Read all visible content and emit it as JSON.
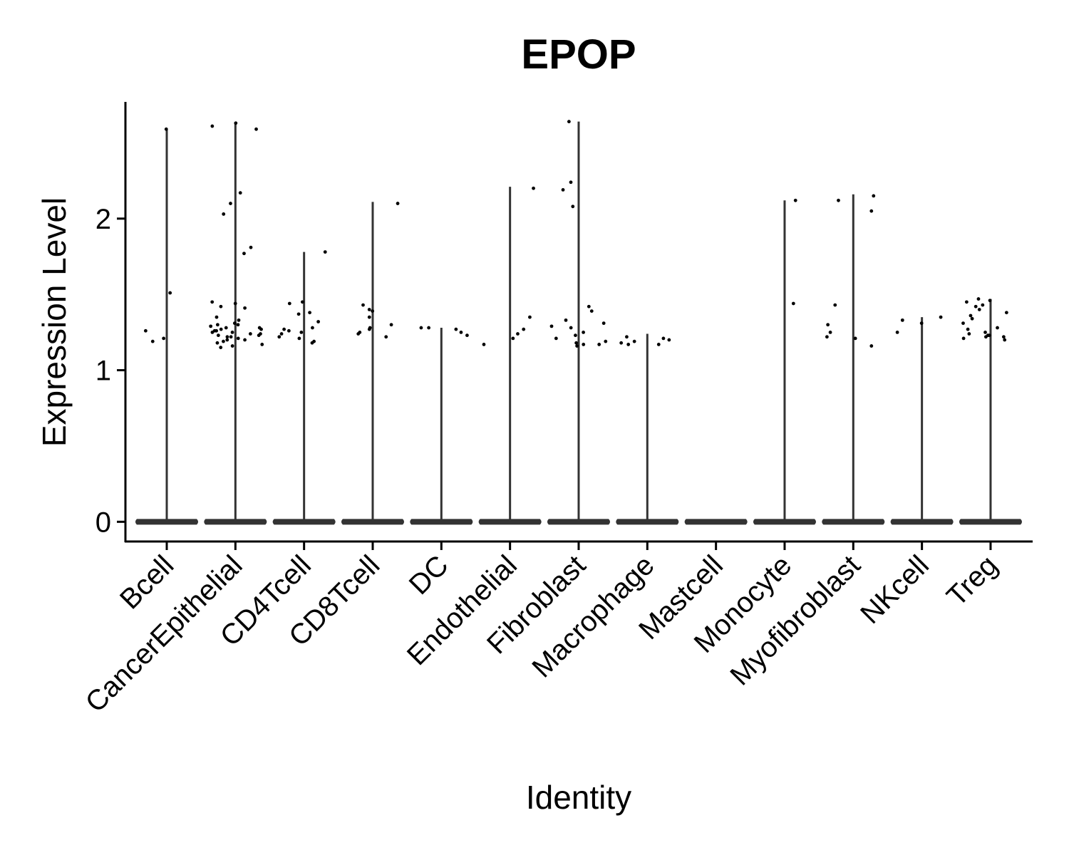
{
  "chart_data": {
    "type": "violin",
    "title": "EPOP",
    "x_label": "Identity",
    "y_label": "Expression Level",
    "categories": [
      "Bcell",
      "CancerEpithelial",
      "CD4Tcell",
      "CD8Tcell",
      "DC",
      "Endothelial",
      "Fibroblast",
      "Macrophage",
      "Mastcell",
      "Monocyte",
      "Myofibroblast",
      "NKcell",
      "Treg"
    ],
    "values": [
      2.59,
      2.63,
      1.78,
      2.11,
      1.28,
      2.21,
      2.64,
      1.24,
      0,
      2.12,
      2.16,
      1.35,
      1.47
    ],
    "points": [
      [
        2.59,
        1.51,
        1.26,
        1.19,
        1.21
      ],
      [
        2.63,
        2.61,
        2.59,
        2.17,
        2.1,
        2.03,
        1.81,
        1.77,
        1.45,
        1.44,
        1.42,
        1.41,
        1.35,
        1.33,
        1.31,
        1.3,
        1.29,
        1.28,
        1.27,
        1.26,
        1.25,
        1.24,
        1.23,
        1.22,
        1.21,
        1.2,
        1.19,
        1.18,
        1.17,
        1.16,
        1.15,
        1.3,
        1.28,
        1.26,
        1.24,
        1.22,
        1.2,
        1.25,
        1.23,
        1.27
      ],
      [
        1.78,
        1.45,
        1.44,
        1.38,
        1.37,
        1.32,
        1.28,
        1.27,
        1.26,
        1.25,
        1.24,
        1.22,
        1.21,
        1.19,
        1.18
      ],
      [
        2.1,
        1.43,
        1.4,
        1.39,
        1.35,
        1.3,
        1.28,
        1.27,
        1.25,
        1.24,
        1.22
      ],
      [
        1.28,
        1.28,
        1.27,
        1.25,
        1.23
      ],
      [
        2.2,
        1.35,
        1.27,
        1.24,
        1.21,
        1.17
      ],
      [
        2.64,
        2.24,
        2.19,
        2.08,
        1.42,
        1.39,
        1.33,
        1.31,
        1.29,
        1.28,
        1.25,
        1.23,
        1.21,
        1.19,
        1.18,
        1.17,
        1.17,
        1.16
      ],
      [
        1.22,
        1.21,
        1.2,
        1.19,
        1.18,
        1.17,
        1.17
      ],
      [],
      [
        2.12,
        1.44
      ],
      [
        2.15,
        2.12,
        2.05,
        1.43,
        1.3,
        1.25,
        1.22,
        1.21,
        1.16
      ],
      [
        1.35,
        1.33,
        1.31,
        1.25
      ],
      [
        1.47,
        1.46,
        1.45,
        1.43,
        1.42,
        1.4,
        1.38,
        1.36,
        1.34,
        1.31,
        1.28,
        1.27,
        1.25,
        1.24,
        1.23,
        1.22,
        1.21,
        1.2,
        1.23,
        1.22
      ]
    ],
    "color": "#333333",
    "point_color": "#000000",
    "ylim": [
      -0.13,
      2.77
    ],
    "yticks": [
      0,
      1,
      2
    ]
  }
}
